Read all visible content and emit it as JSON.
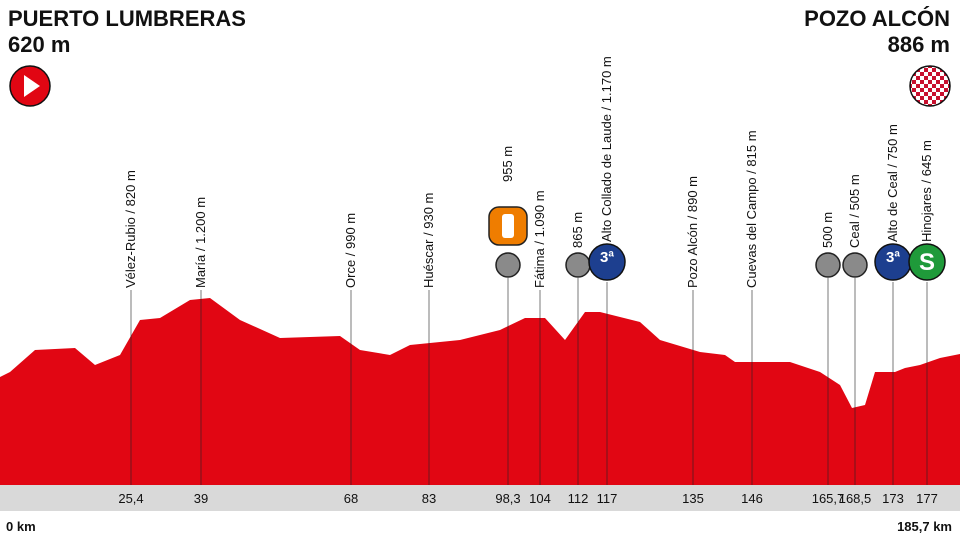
{
  "start": {
    "name": "PUERTO LUMBRERAS",
    "altitude": "620 m",
    "km": "0 km"
  },
  "finish": {
    "name": "POZO ALCÓN",
    "altitude": "886 m",
    "km": "185,7 km"
  },
  "waypoints": [
    {
      "label": "Vélez-Rubio / 820 m",
      "km": "25,4"
    },
    {
      "label": "María / 1.200 m",
      "km": "39"
    },
    {
      "label": "Orce / 990 m",
      "km": "68"
    },
    {
      "label": "Huéscar / 930 m",
      "km": "83"
    },
    {
      "label": "955 m",
      "km": "98,3"
    },
    {
      "label": "Fátima / 1.090 m",
      "km": "104"
    },
    {
      "label": "865 m",
      "km": "112"
    },
    {
      "label": "Alto Collado de Laude / 1.170 m",
      "km": "117",
      "icon": "3ª"
    },
    {
      "label": "Pozo Alcón / 890 m",
      "km": "135"
    },
    {
      "label": "Cuevas del Campo / 815 m",
      "km": "146"
    },
    {
      "label": "500 m",
      "km": "165,7"
    },
    {
      "label": "Ceal / 505 m",
      "km": "168,5"
    },
    {
      "label": "Alto de Ceal / 750 m",
      "km": "173",
      "icon": "3ª"
    },
    {
      "label": "Hinojares / 645 m",
      "km": "177",
      "icon": "S"
    }
  ]
}
